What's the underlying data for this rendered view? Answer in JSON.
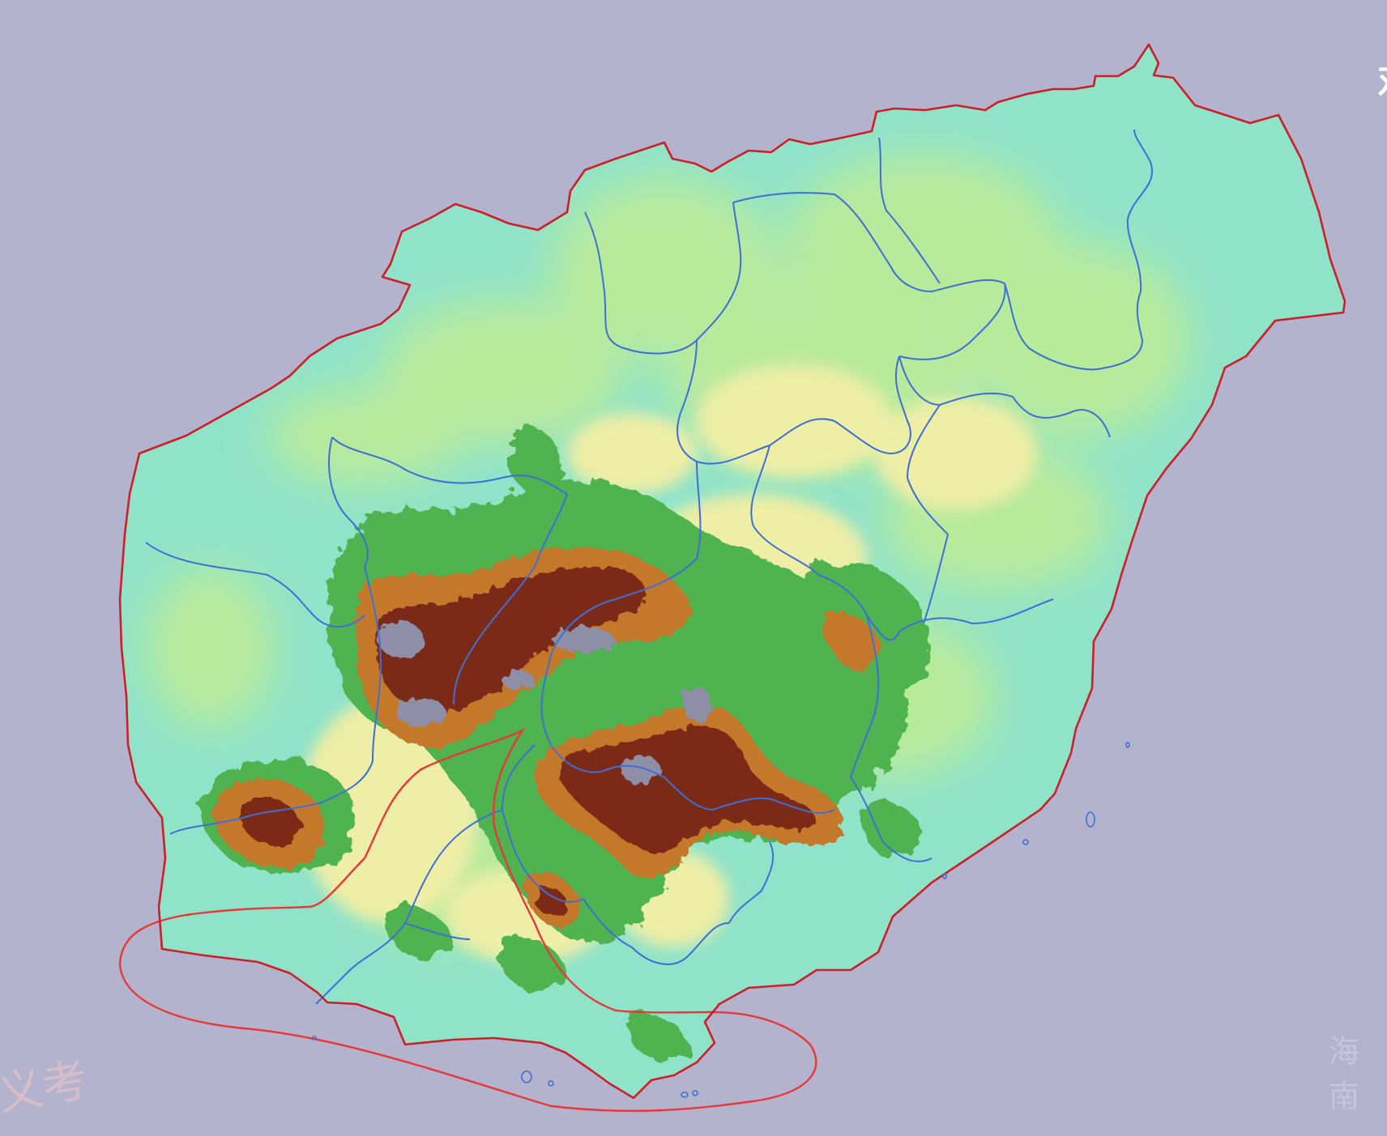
{
  "map": {
    "title": "",
    "colors": {
      "background": "#b3b3cd",
      "lowland": "#8fe3c9",
      "plain": "#b8ea9c",
      "upland": "#eeeea6",
      "hills": "#4fb350",
      "mountains": "#c4782a",
      "high_peaks": "#7a2b12",
      "summits": "#8e8ea6",
      "coastline": "#cc1f2a",
      "admin_boundary": "#3f6fd6",
      "highlight_outline": "#e8383a"
    },
    "watermarks": {
      "left": "义考",
      "right": "海南",
      "top_right": "对"
    }
  }
}
